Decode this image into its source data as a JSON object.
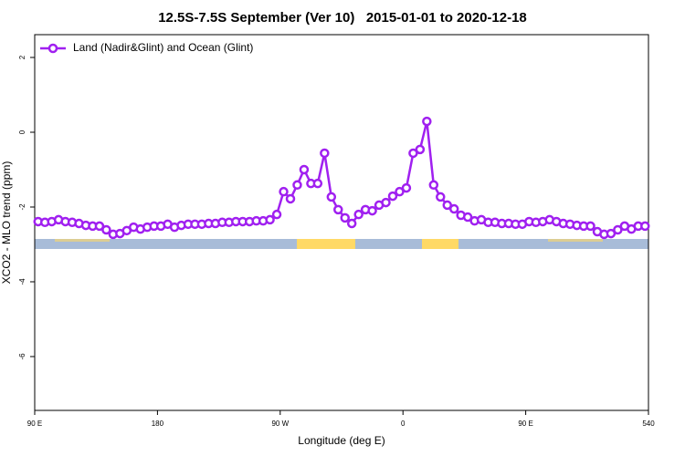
{
  "chart_data": {
    "type": "line",
    "title": "12.5S-7.5S September (Ver 10)   2015-01-01 to 2020-12-18",
    "xlabel": "Longitude (deg E)",
    "ylabel": "XCO2 - MLO trend (ppm)",
    "xlim": [
      90,
      540
    ],
    "xticks": [
      {
        "value": 90,
        "label": "90 E"
      },
      180,
      {
        "value": 270,
        "label": "90 W"
      },
      {
        "value": 360,
        "label": "0"
      },
      {
        "value": 450,
        "label": "90 E"
      },
      540
    ],
    "ylim": [
      -7.44,
      2.61
    ],
    "yticks": [
      2,
      0,
      -2,
      -4,
      -6
    ],
    "legend": "top-left",
    "series": [
      {
        "name": "Land (Nadir&Glint) and Ocean (Glint)",
        "color": "#a020f0",
        "x": [
          92.5,
          97.5,
          102.5,
          107.5,
          112.5,
          117.5,
          122.5,
          127.5,
          132.5,
          137.5,
          142.5,
          147.5,
          152.5,
          157.5,
          162.5,
          167.5,
          172.5,
          177.5,
          182.5,
          187.5,
          192.5,
          197.5,
          202.5,
          207.5,
          212.5,
          217.5,
          222.5,
          227.5,
          232.5,
          237.5,
          242.5,
          247.5,
          252.5,
          257.5,
          262.5,
          267.5,
          272.5,
          277.5,
          282.5,
          287.5,
          292.5,
          297.5,
          302.5,
          307.5,
          312.5,
          317.5,
          322.5,
          327.5,
          332.5,
          337.5,
          342.5,
          347.5,
          352.5,
          357.5,
          362.5,
          367.5,
          372.5,
          377.5,
          382.5,
          387.5,
          392.5,
          397.5,
          402.5,
          407.5,
          412.5,
          417.5,
          422.5,
          427.5,
          432.5,
          437.5,
          442.5,
          447.5,
          452.5,
          457.5,
          462.5,
          467.5,
          472.5,
          477.5,
          482.5,
          487.5,
          492.5,
          497.5,
          502.5,
          507.5,
          512.5,
          517.5,
          522.5,
          527.5,
          532.5,
          537.5
        ],
        "values": [
          -2.39,
          -2.41,
          -2.39,
          -2.34,
          -2.39,
          -2.41,
          -2.44,
          -2.49,
          -2.51,
          -2.51,
          -2.61,
          -2.73,
          -2.71,
          -2.63,
          -2.54,
          -2.59,
          -2.54,
          -2.51,
          -2.51,
          -2.46,
          -2.54,
          -2.49,
          -2.46,
          -2.46,
          -2.46,
          -2.44,
          -2.44,
          -2.41,
          -2.41,
          -2.39,
          -2.39,
          -2.39,
          -2.37,
          -2.37,
          -2.34,
          -2.2,
          -1.59,
          -1.78,
          -1.41,
          -1.0,
          -1.37,
          -1.37,
          -0.56,
          -1.73,
          -2.07,
          -2.29,
          -2.44,
          -2.2,
          -2.07,
          -2.1,
          -1.95,
          -1.88,
          -1.71,
          -1.59,
          -1.49,
          -0.56,
          -0.46,
          0.29,
          -1.41,
          -1.73,
          -1.95,
          -2.05,
          -2.22,
          -2.27,
          -2.37,
          -2.34,
          -2.41,
          -2.41,
          -2.44,
          -2.44,
          -2.46,
          -2.46,
          -2.39,
          -2.41,
          -2.39,
          -2.34,
          -2.39,
          -2.44,
          -2.46,
          -2.49,
          -2.51,
          -2.51,
          -2.66,
          -2.73,
          -2.71,
          -2.61,
          -2.51,
          -2.59,
          -2.51,
          -2.51
        ]
      }
    ]
  }
}
